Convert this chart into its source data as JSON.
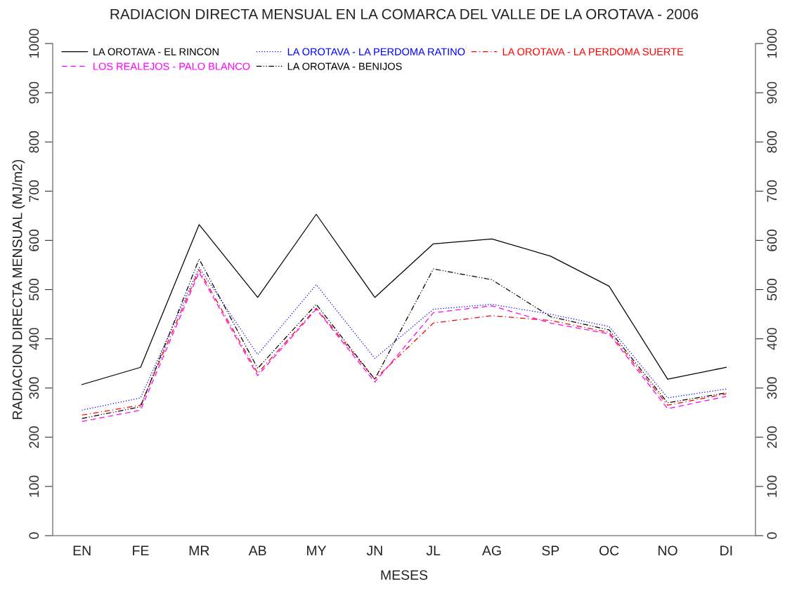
{
  "chart_data": {
    "type": "line",
    "title": "RADIACION DIRECTA MENSUAL EN LA COMARCA DEL VALLE DE LA OROTAVA - 2006",
    "xlabel": "MESES",
    "ylabel": "RADIACION DIRECTA MENSUAL (MJ/m2)",
    "categories": [
      "EN",
      "FE",
      "MR",
      "AB",
      "MY",
      "JN",
      "JL",
      "AG",
      "SP",
      "OC",
      "NO",
      "DI"
    ],
    "series": [
      {
        "name": "LA OROTAVA - EL RINCON",
        "color": "#000000",
        "line_style": "solid",
        "values": [
          307,
          342,
          632,
          484,
          653,
          484,
          593,
          603,
          568,
          507,
          318,
          342
        ]
      },
      {
        "name": "LA OROTAVA - LA PERDOMA RATINO",
        "color": "#0000ff",
        "line_style": "dotted",
        "values": [
          255,
          280,
          545,
          368,
          510,
          360,
          460,
          470,
          450,
          425,
          280,
          298
        ]
      },
      {
        "name": "LA OROTAVA - LA PERDOMA SUERTE",
        "color": "#ff0000",
        "line_style": "dashdot",
        "values": [
          245,
          265,
          540,
          330,
          462,
          318,
          432,
          447,
          437,
          413,
          265,
          288
        ]
      },
      {
        "name": "LOS REALEJOS - PALO BLANCO",
        "color": "#ff00ff",
        "line_style": "dashed",
        "values": [
          232,
          255,
          535,
          325,
          460,
          312,
          453,
          467,
          432,
          410,
          258,
          283
        ]
      },
      {
        "name": "LA OROTAVA - BENIJOS",
        "color": "#000000",
        "line_style": "dashdotdot",
        "values": [
          238,
          262,
          562,
          340,
          470,
          318,
          542,
          520,
          445,
          418,
          270,
          290
        ]
      }
    ],
    "ylim": [
      0,
      1000
    ],
    "yticks": [
      0,
      100,
      200,
      300,
      400,
      500,
      600,
      700,
      800,
      900,
      1000
    ],
    "y2lim": [
      0,
      1000
    ],
    "y2ticks": [
      0,
      100,
      200,
      300,
      400,
      500,
      600,
      700,
      800,
      900,
      1000
    ],
    "grid": false,
    "legend": "top left",
    "marker": "none"
  }
}
